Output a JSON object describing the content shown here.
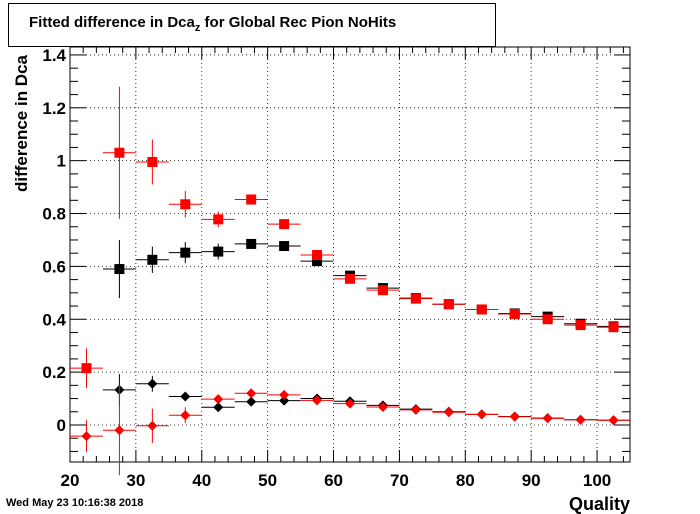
{
  "title": {
    "prefix": "Fitted difference in Dca",
    "subscript": "z",
    "suffix": " for Global Rec Pion NoHits"
  },
  "timestamp": "Wed May 23 10:16:38 2018",
  "chart_data": {
    "type": "scatter",
    "xlabel": "Quality",
    "ylabel": "difference in Dca",
    "xlim": [
      20,
      105
    ],
    "ylim": [
      -0.14,
      1.43
    ],
    "x_ticks": [
      20,
      30,
      40,
      50,
      60,
      70,
      80,
      90,
      100
    ],
    "x_tick_labels": [
      "20",
      "30",
      "40",
      "50",
      "60",
      "70",
      "80",
      "90",
      "100"
    ],
    "y_ticks": [
      0,
      0.2,
      0.4,
      0.6,
      0.8,
      1,
      1.2,
      1.4
    ],
    "y_tick_labels": [
      "0",
      "0.2",
      "0.4",
      "0.6",
      "0.8",
      "1",
      "1.2",
      "1.4"
    ],
    "grid": true,
    "x_half_width": 2.5,
    "series": [
      {
        "marker": "square",
        "color": "#000000",
        "points": [
          {
            "x": 27.5,
            "y": 0.59,
            "err": 0.11
          },
          {
            "x": 32.5,
            "y": 0.625,
            "err": 0.05
          },
          {
            "x": 37.5,
            "y": 0.652,
            "err": 0.04
          },
          {
            "x": 42.5,
            "y": 0.656,
            "err": 0.03
          },
          {
            "x": 47.5,
            "y": 0.685,
            "err": 0.015
          },
          {
            "x": 52.5,
            "y": 0.677,
            "err": 0.012
          },
          {
            "x": 57.5,
            "y": 0.62,
            "err": 0.01
          },
          {
            "x": 62.5,
            "y": 0.565,
            "err": 0.008
          },
          {
            "x": 67.5,
            "y": 0.518,
            "err": 0.006
          },
          {
            "x": 72.5,
            "y": 0.48,
            "err": 0.005
          },
          {
            "x": 77.5,
            "y": 0.457,
            "err": 0.004
          },
          {
            "x": 82.5,
            "y": 0.437,
            "err": 0.004
          },
          {
            "x": 87.5,
            "y": 0.422,
            "err": 0.004
          },
          {
            "x": 92.5,
            "y": 0.41,
            "err": 0.004
          },
          {
            "x": 97.5,
            "y": 0.383,
            "err": 0.004
          },
          {
            "x": 102.5,
            "y": 0.373,
            "err": 0.004
          }
        ]
      },
      {
        "marker": "square",
        "color": "#ff0000",
        "points": [
          {
            "x": 22.5,
            "y": 0.215,
            "err": 0.075
          },
          {
            "x": 27.5,
            "y": 1.03,
            "err": 0.25
          },
          {
            "x": 32.5,
            "y": 0.995,
            "err": 0.085
          },
          {
            "x": 37.5,
            "y": 0.835,
            "err": 0.05
          },
          {
            "x": 42.5,
            "y": 0.778,
            "err": 0.03
          },
          {
            "x": 47.5,
            "y": 0.853,
            "err": 0.02
          },
          {
            "x": 52.5,
            "y": 0.76,
            "err": 0.015
          },
          {
            "x": 57.5,
            "y": 0.643,
            "err": 0.01
          },
          {
            "x": 62.5,
            "y": 0.553,
            "err": 0.008
          },
          {
            "x": 67.5,
            "y": 0.51,
            "err": 0.006
          },
          {
            "x": 72.5,
            "y": 0.478,
            "err": 0.005
          },
          {
            "x": 77.5,
            "y": 0.457,
            "err": 0.004
          },
          {
            "x": 82.5,
            "y": 0.437,
            "err": 0.004
          },
          {
            "x": 87.5,
            "y": 0.42,
            "err": 0.004
          },
          {
            "x": 92.5,
            "y": 0.4,
            "err": 0.004
          },
          {
            "x": 97.5,
            "y": 0.378,
            "err": 0.004
          },
          {
            "x": 102.5,
            "y": 0.37,
            "err": 0.004
          }
        ]
      },
      {
        "marker": "diamond",
        "color": "#000000",
        "points": [
          {
            "x": 27.5,
            "y": 0.133,
            "err": 0.06
          },
          {
            "x": 32.5,
            "y": 0.156,
            "err": 0.03
          },
          {
            "x": 37.5,
            "y": 0.108,
            "err": 0.015
          },
          {
            "x": 42.5,
            "y": 0.067,
            "err": 0.01
          },
          {
            "x": 47.5,
            "y": 0.088,
            "err": 0.008
          },
          {
            "x": 52.5,
            "y": 0.092,
            "err": 0.006
          },
          {
            "x": 57.5,
            "y": 0.1,
            "err": 0.005
          },
          {
            "x": 62.5,
            "y": 0.09,
            "err": 0.004
          },
          {
            "x": 67.5,
            "y": 0.074,
            "err": 0.004
          },
          {
            "x": 72.5,
            "y": 0.06,
            "err": 0.003
          },
          {
            "x": 77.5,
            "y": 0.05,
            "err": 0.003
          },
          {
            "x": 82.5,
            "y": 0.04,
            "err": 0.003
          },
          {
            "x": 87.5,
            "y": 0.032,
            "err": 0.003
          },
          {
            "x": 92.5,
            "y": 0.026,
            "err": 0.003
          },
          {
            "x": 97.5,
            "y": 0.02,
            "err": 0.003
          },
          {
            "x": 102.5,
            "y": 0.018,
            "err": 0.003
          }
        ]
      },
      {
        "marker": "diamond",
        "color": "#ff0000",
        "points": [
          {
            "x": 22.5,
            "y": -0.042,
            "err": 0.06
          },
          {
            "x": 27.5,
            "y": -0.02,
            "err": 0.17
          },
          {
            "x": 32.5,
            "y": -0.003,
            "err": 0.065
          },
          {
            "x": 37.5,
            "y": 0.037,
            "err": 0.03
          },
          {
            "x": 42.5,
            "y": 0.098,
            "err": 0.015
          },
          {
            "x": 47.5,
            "y": 0.12,
            "err": 0.01
          },
          {
            "x": 52.5,
            "y": 0.114,
            "err": 0.008
          },
          {
            "x": 57.5,
            "y": 0.093,
            "err": 0.006
          },
          {
            "x": 62.5,
            "y": 0.081,
            "err": 0.005
          },
          {
            "x": 67.5,
            "y": 0.068,
            "err": 0.004
          },
          {
            "x": 72.5,
            "y": 0.057,
            "err": 0.004
          },
          {
            "x": 77.5,
            "y": 0.048,
            "err": 0.003
          },
          {
            "x": 82.5,
            "y": 0.04,
            "err": 0.003
          },
          {
            "x": 87.5,
            "y": 0.031,
            "err": 0.003
          },
          {
            "x": 92.5,
            "y": 0.025,
            "err": 0.003
          },
          {
            "x": 97.5,
            "y": 0.02,
            "err": 0.003
          },
          {
            "x": 102.5,
            "y": 0.018,
            "err": 0.003
          }
        ]
      }
    ]
  }
}
